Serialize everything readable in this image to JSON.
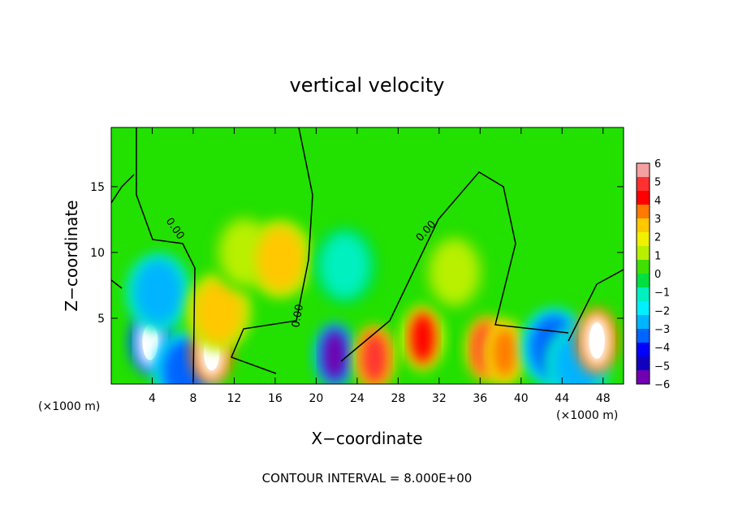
{
  "chart_data": {
    "type": "heatmap",
    "title": "vertical velocity",
    "xlabel": "X−coordinate",
    "ylabel": "Z−coordinate",
    "x_unit": "(×1000 m)",
    "x_unit_right": "(×1000 m)",
    "xlim": [
      0,
      50
    ],
    "ylim": [
      0,
      19.5
    ],
    "x_ticks": [
      4,
      8,
      12,
      16,
      20,
      24,
      28,
      32,
      36,
      40,
      44,
      48
    ],
    "y_ticks": [
      5,
      10,
      15
    ],
    "contour_label": "0.00",
    "footer": "CONTOUR INTERVAL = 8.000E+00",
    "colorbar": {
      "ticks": [
        "6",
        "5",
        "4",
        "3",
        "2",
        "1",
        "0",
        "−1",
        "−2",
        "−3",
        "−4",
        "−5",
        "−6"
      ],
      "colors": [
        "#f4a0a0",
        "#ff3030",
        "#ff0000",
        "#ff7a00",
        "#ffc800",
        "#f0f000",
        "#b8f000",
        "#40e000",
        "#00e040",
        "#00f0c0",
        "#00f0ff",
        "#00b4ff",
        "#0064ff",
        "#0000ff",
        "#1000c0",
        "#7000b0"
      ]
    },
    "features": [
      {
        "x": 3.8,
        "z": 3.2,
        "w": -7
      },
      {
        "x": 4.6,
        "z": 7.0,
        "w": -2.5
      },
      {
        "x": 7.3,
        "z": 1.0,
        "w": -3.5
      },
      {
        "x": 9.8,
        "z": 2.4,
        "w": 7
      },
      {
        "x": 10.5,
        "z": 5.5,
        "w": 3
      },
      {
        "x": 13.0,
        "z": 10.0,
        "w": 1
      },
      {
        "x": 16.5,
        "z": 9.5,
        "w": 2.5
      },
      {
        "x": 21.8,
        "z": 2.2,
        "w": -6
      },
      {
        "x": 22.8,
        "z": 9.0,
        "w": -1.5
      },
      {
        "x": 25.7,
        "z": 2.0,
        "w": 5
      },
      {
        "x": 30.4,
        "z": 3.5,
        "w": 4.5
      },
      {
        "x": 33.5,
        "z": 8.5,
        "w": 1
      },
      {
        "x": 36.6,
        "z": 2.7,
        "w": 5
      },
      {
        "x": 38.4,
        "z": 2.4,
        "w": 4
      },
      {
        "x": 43.2,
        "z": 2.8,
        "w": -3.5
      },
      {
        "x": 45.5,
        "z": 1.5,
        "w": -3
      },
      {
        "x": 47.4,
        "z": 3.3,
        "w": 8
      }
    ]
  }
}
